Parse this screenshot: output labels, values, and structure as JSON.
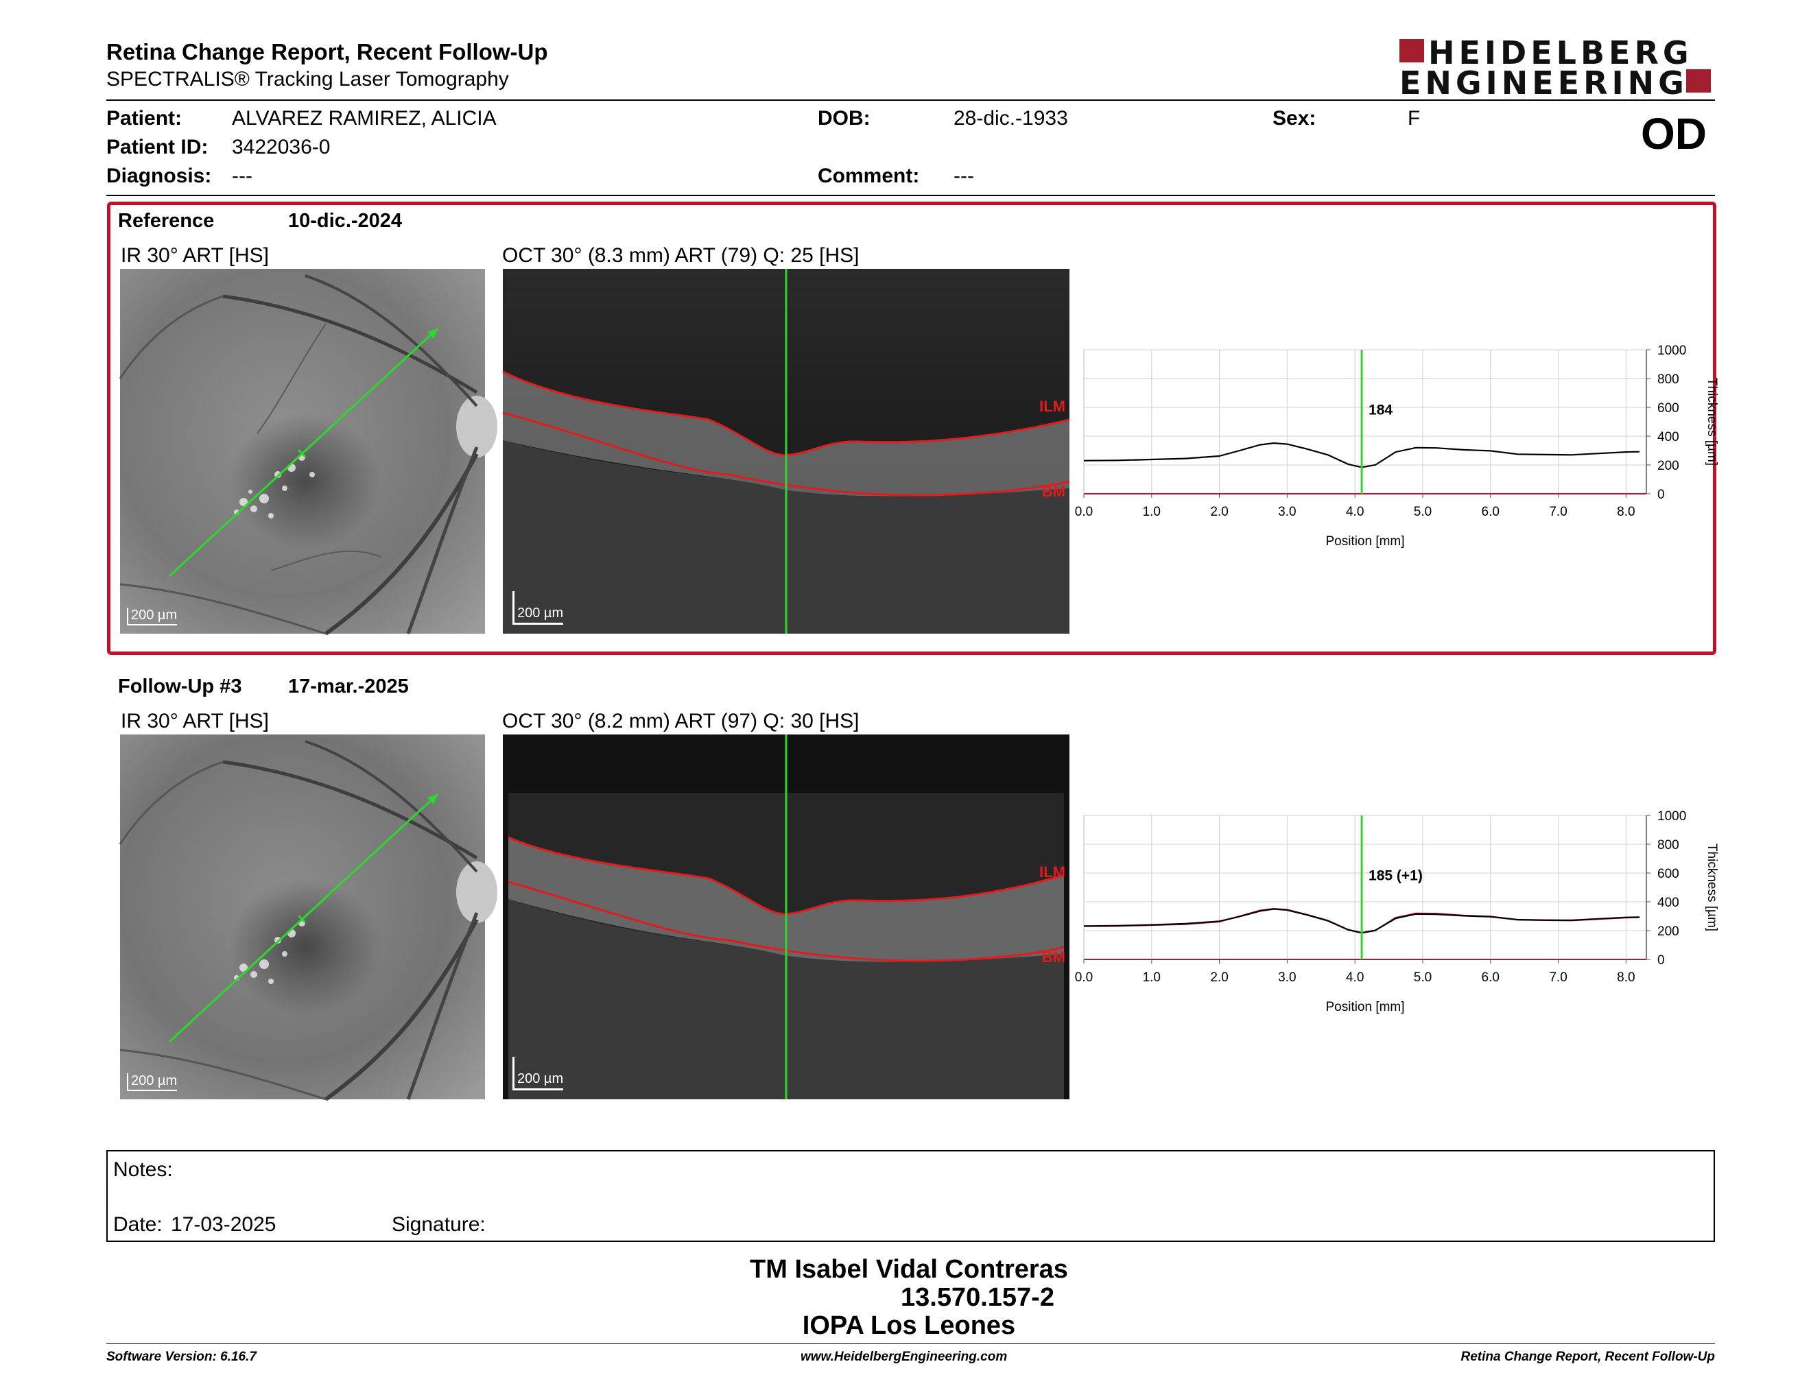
{
  "header": {
    "title": "Retina Change Report, Recent Follow-Up",
    "subtitle": "SPECTRALIS® Tracking Laser Tomography",
    "logo_line1": "HEIDELBERG",
    "logo_line2": "ENGINEERING",
    "brand_color": "#a31f2e"
  },
  "patient": {
    "patient_label": "Patient:",
    "patient_value": "ALVAREZ RAMIREZ, ALICIA",
    "id_label": "Patient ID:",
    "id_value": "3422036-0",
    "diagnosis_label": "Diagnosis:",
    "diagnosis_value": "---",
    "dob_label": "DOB:",
    "dob_value": "28-dic.-1933",
    "comment_label": "Comment:",
    "comment_value": "---",
    "sex_label": "Sex:",
    "sex_value": "F",
    "eye": "OD"
  },
  "reference": {
    "label": "Reference",
    "date": "10-dic.-2024",
    "ir_title": "IR 30° ART [HS]",
    "oct_title": "OCT 30° (8.3 mm) ART (79) Q: 25 [HS]",
    "ir_scale": "200 µm",
    "oct_scale": "200 µm",
    "ilm_label": "ILM",
    "bm_label": "BM",
    "frame_color": "#c0102a"
  },
  "followup": {
    "label": "Follow-Up #3",
    "date": "17-mar.-2025",
    "ir_title": "IR 30° ART [HS]",
    "oct_title": "OCT 30° (8.2 mm) ART (97) Q: 30 [HS]",
    "ir_scale": "200 µm",
    "oct_scale": "200 µm",
    "ilm_label": "ILM",
    "bm_label": "BM"
  },
  "chart_data": [
    {
      "type": "line",
      "xlabel": "Position [mm]",
      "ylabel": "Thickness [µm]",
      "xlim": [
        0,
        8.3
      ],
      "ylim": [
        0,
        1000
      ],
      "x_ticks": [
        "0.0",
        "1.0",
        "2.0",
        "3.0",
        "4.0",
        "5.0",
        "6.0",
        "7.0",
        "8.0"
      ],
      "y_ticks": [
        "0",
        "200",
        "400",
        "600",
        "800",
        "1000"
      ],
      "cursor_x": 4.1,
      "cursor_label": "184",
      "grid": true,
      "series": [
        {
          "color": "#000000",
          "x": [
            0.0,
            0.5,
            1.0,
            1.5,
            2.0,
            2.3,
            2.6,
            2.8,
            3.0,
            3.3,
            3.6,
            3.9,
            4.1,
            4.3,
            4.6,
            4.9,
            5.2,
            5.6,
            6.0,
            6.4,
            6.8,
            7.2,
            7.6,
            8.0,
            8.2
          ],
          "y": [
            230,
            232,
            238,
            245,
            262,
            300,
            340,
            352,
            345,
            310,
            270,
            205,
            184,
            200,
            290,
            320,
            318,
            305,
            298,
            275,
            272,
            270,
            280,
            290,
            292
          ]
        }
      ]
    },
    {
      "type": "line",
      "xlabel": "Position [mm]",
      "ylabel": "Thickness [µm]",
      "xlim": [
        0,
        8.3
      ],
      "ylim": [
        0,
        1000
      ],
      "x_ticks": [
        "0.0",
        "1.0",
        "2.0",
        "3.0",
        "4.0",
        "5.0",
        "6.0",
        "7.0",
        "8.0"
      ],
      "y_ticks": [
        "0",
        "200",
        "400",
        "600",
        "800",
        "1000"
      ],
      "cursor_x": 4.1,
      "cursor_label": "185 (+1)",
      "grid": true,
      "series": [
        {
          "color": "#c0102a",
          "x": [
            0.0,
            0.5,
            1.0,
            1.5,
            2.0,
            2.3,
            2.6,
            2.8,
            3.0,
            3.3,
            3.6,
            3.9,
            4.1,
            4.3,
            4.6,
            4.9,
            5.2,
            5.6,
            6.0,
            6.4,
            6.8,
            7.2,
            7.6,
            8.0,
            8.2
          ],
          "y": [
            230,
            232,
            238,
            245,
            262,
            300,
            340,
            352,
            345,
            310,
            270,
            205,
            184,
            200,
            290,
            320,
            318,
            305,
            298,
            275,
            272,
            270,
            280,
            290,
            292
          ]
        },
        {
          "color": "#000000",
          "x": [
            0.0,
            0.5,
            1.0,
            1.5,
            2.0,
            2.3,
            2.6,
            2.8,
            3.0,
            3.3,
            3.6,
            3.9,
            4.1,
            4.3,
            4.6,
            4.9,
            5.2,
            5.6,
            6.0,
            6.4,
            6.8,
            7.2,
            7.6,
            8.0,
            8.2
          ],
          "y": [
            232,
            234,
            240,
            248,
            265,
            298,
            336,
            350,
            343,
            308,
            268,
            206,
            185,
            202,
            285,
            315,
            314,
            303,
            296,
            276,
            273,
            272,
            282,
            292,
            294
          ]
        }
      ]
    }
  ],
  "notes": {
    "notes_label": "Notes:",
    "date_label": "Date:",
    "date_value": "17-03-2025",
    "signature_label": "Signature:"
  },
  "signature_block": {
    "name": "TM Isabel Vidal Contreras",
    "rut": "13.570.157-2",
    "institution": "IOPA Los Leones"
  },
  "footer": {
    "software": "Software Version: 6.16.7",
    "website": "www.HeidelbergEngineering.com",
    "report_name": "Retina Change Report, Recent Follow-Up"
  }
}
